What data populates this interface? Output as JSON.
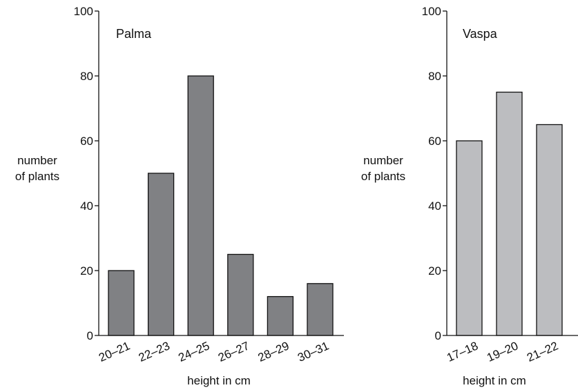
{
  "chart_data": [
    {
      "type": "bar",
      "title": "Palma",
      "xlabel": "height in cm",
      "ylabel": [
        "number",
        "of plants"
      ],
      "categories": [
        "20–21",
        "22–23",
        "24–25",
        "26–27",
        "28–29",
        "30–31"
      ],
      "values": [
        20,
        50,
        80,
        25,
        12,
        16
      ],
      "ylim": [
        0,
        100
      ],
      "yticks": [
        "0",
        "20",
        "40",
        "60",
        "80",
        "100"
      ],
      "bar_color": "#808184",
      "grid": false
    },
    {
      "type": "bar",
      "title": "Vaspa",
      "xlabel": "height in cm",
      "ylabel": [
        "number",
        "of plants"
      ],
      "categories": [
        "17–18",
        "19–20",
        "21–22"
      ],
      "values": [
        60,
        75,
        65
      ],
      "ylim": [
        0,
        100
      ],
      "yticks": [
        "0",
        "20",
        "40",
        "60",
        "80",
        "100"
      ],
      "bar_color": "#bcbdc0",
      "grid": false
    }
  ]
}
